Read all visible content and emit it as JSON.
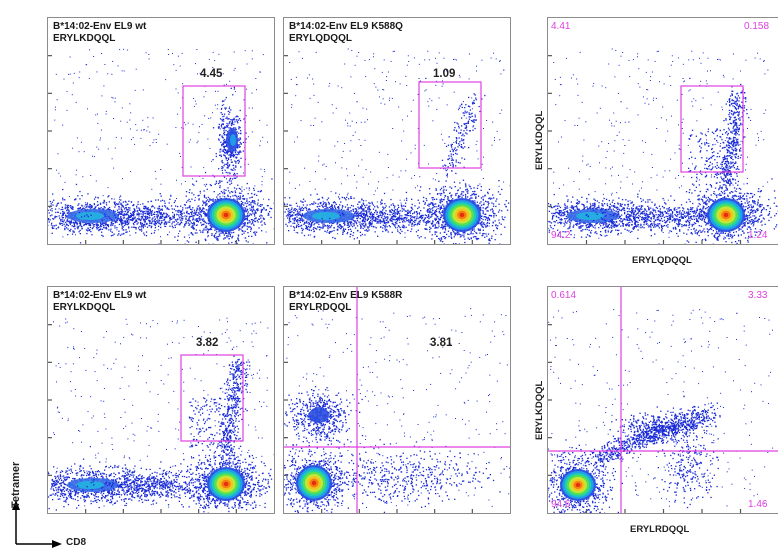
{
  "panels": [
    {
      "title_line1": "B*14:02-Env EL9 wt",
      "title_line2": "ERYLKDQQL",
      "gate_value": "4.45"
    },
    {
      "title_line1": "B*14:02-Env EL9 K588Q",
      "title_line2": "ERYLQDQQL",
      "gate_value": "1.09"
    },
    {
      "title_line1": "B*14:02-Env EL9 wt",
      "title_line2": "ERYLKDQQL",
      "gate_value": "3.82"
    },
    {
      "title_line1": "B*14:02-Env EL9 K588R",
      "title_line2": "ERYLRDQQL",
      "gate_value": "3.81"
    }
  ],
  "quad_panels": [
    {
      "ul": "4.41",
      "ur": "0.158",
      "ll": "94.2",
      "lr": "1.24",
      "xlabel": "ERYLQDQQL",
      "ylabel": "ERYLKDQQL"
    },
    {
      "ul": "0.614",
      "ur": "3.33",
      "ll": "94.6",
      "lr": "1.46",
      "xlabel": "ERYLRDQQL",
      "ylabel": "ERYLKDQQL"
    }
  ],
  "axis": {
    "ylabel": "Tetramer",
    "xlabel": "CD8"
  },
  "colors": {
    "gate": "#e040e0",
    "density_low": "#1a2bd6",
    "density_high": "#e01010"
  }
}
